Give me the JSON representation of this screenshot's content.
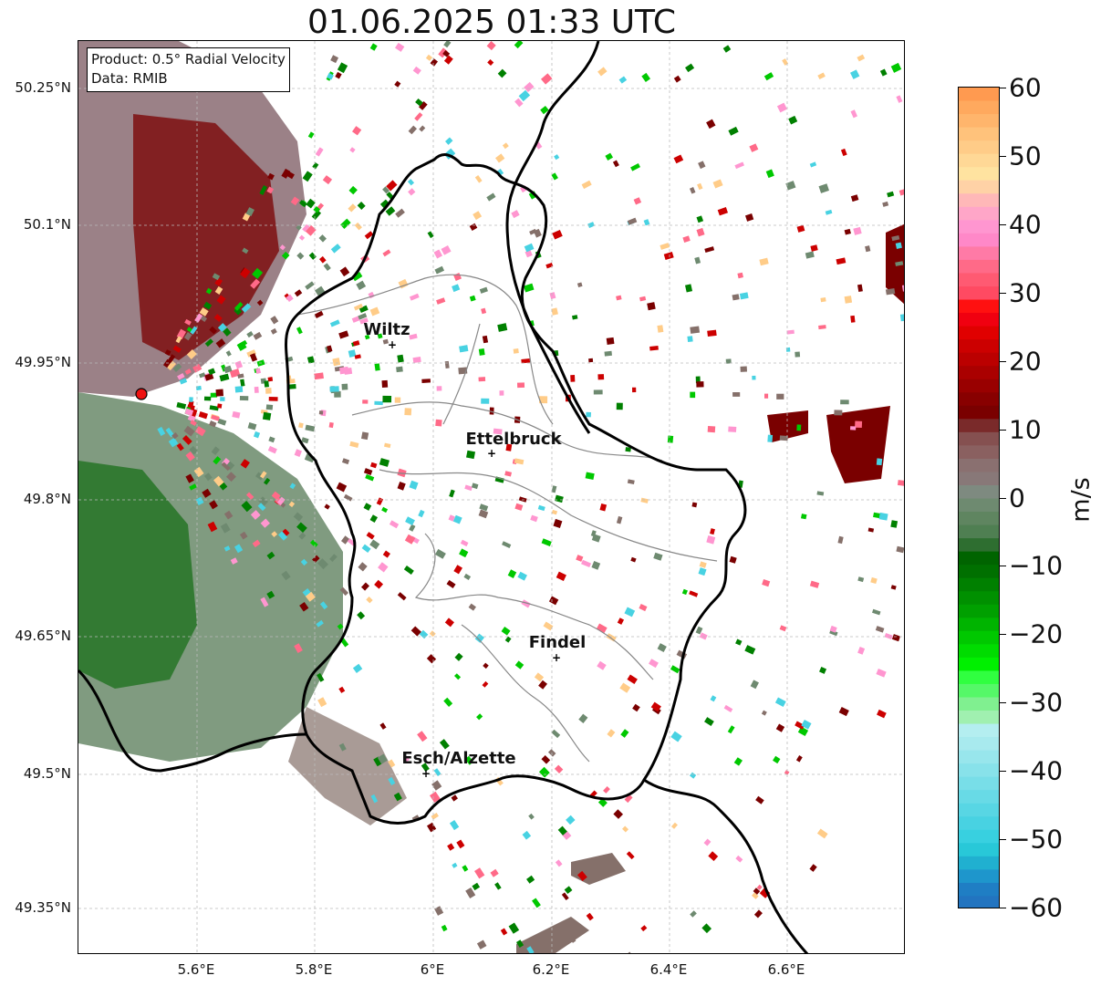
{
  "title": "01.06.2025 01:33 UTC",
  "info_box": {
    "product_line": "Product: 0.5° Radial Velocity",
    "data_line": "Data: RMIB"
  },
  "map": {
    "lat_labels": [
      "50.25°N",
      "50.1°N",
      "49.95°N",
      "49.8°N",
      "49.65°N",
      "49.5°N",
      "49.35°N"
    ],
    "lon_labels": [
      "5.6°E",
      "5.8°E",
      "6°E",
      "6.2°E",
      "6.4°E",
      "6.6°E"
    ],
    "grid": "dashed",
    "radar_site": {
      "marker": "red-circle"
    },
    "cities": [
      {
        "name": "Wiltz",
        "marker": "+"
      },
      {
        "name": "Ettelbruck",
        "marker": "+"
      },
      {
        "name": "Findel",
        "marker": "+"
      },
      {
        "name": "Esch/Alzette",
        "marker": "+"
      }
    ]
  },
  "colorbar": {
    "unit": "m/s",
    "tick_labels": [
      "60",
      "50",
      "40",
      "30",
      "20",
      "10",
      "0",
      "−10",
      "−20",
      "−30",
      "−40",
      "−50",
      "−60"
    ],
    "range": [
      -60,
      60
    ],
    "colors_top_to_bottom": [
      "#ff9a50",
      "#ffa95e",
      "#ffb56c",
      "#ffc27b",
      "#ffcc88",
      "#ffd896",
      "#ffe3a0",
      "#ffd2a6",
      "#ffb8b8",
      "#ffa6c8",
      "#ff96d0",
      "#ff88c8",
      "#ff7aa6",
      "#ff6a88",
      "#ff5a72",
      "#ff4a62",
      "#ff1010",
      "#f00010",
      "#e00000",
      "#cc0000",
      "#bb0000",
      "#aa0000",
      "#990000",
      "#880000",
      "#7a0000",
      "#7a2a2a",
      "#855050",
      "#8a6060",
      "#8a7070",
      "#887878",
      "#7e8a80",
      "#6e8a70",
      "#5f8560",
      "#4f7f52",
      "#2e6e30",
      "#006400",
      "#007000",
      "#008000",
      "#009000",
      "#00a000",
      "#00b400",
      "#00c800",
      "#00dc00",
      "#00f000",
      "#30ff40",
      "#55f868",
      "#80f090",
      "#a0f0b0",
      "#b4eef0",
      "#a8eaee",
      "#98e6ec",
      "#88e2ea",
      "#78dee8",
      "#68dae6",
      "#58d6e4",
      "#48d2e2",
      "#38d0e0",
      "#28c8d8",
      "#20b0d0",
      "#1e96cc",
      "#1f7ec4",
      "#2274c0"
    ]
  }
}
